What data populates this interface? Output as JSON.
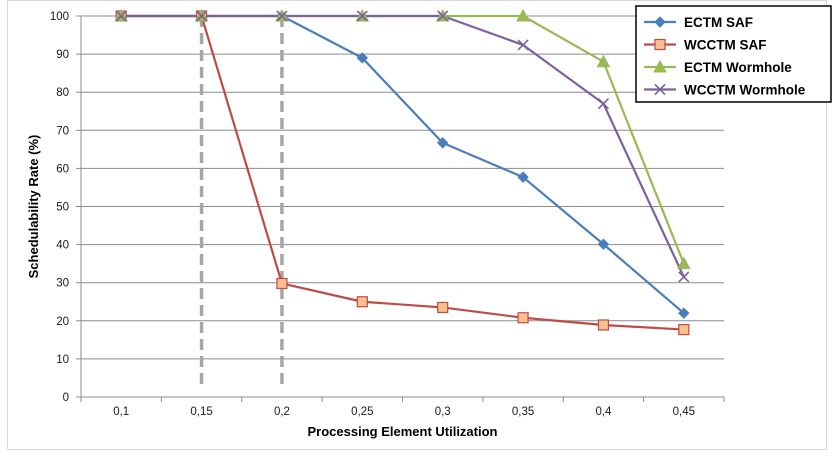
{
  "chart_data": {
    "type": "line",
    "title": "",
    "xlabel": "Processing Element Utilization",
    "ylabel": "Schedulability Rate (%)",
    "categories": [
      "0,1",
      "0,15",
      "0,2",
      "0,25",
      "0,3",
      "0,35",
      "0,4",
      "0,45"
    ],
    "ylim": [
      0,
      100
    ],
    "yticks": [
      0,
      10,
      20,
      30,
      40,
      50,
      60,
      70,
      80,
      90,
      100
    ],
    "grid": true,
    "legend_position": "top-right",
    "series": [
      {
        "name": "ECTM SAF",
        "color": "#4a7ebb",
        "marker": "diamond",
        "values": [
          100,
          100,
          100,
          89,
          66.7,
          57.7,
          40.1,
          22
        ]
      },
      {
        "name": "WCCTM SAF",
        "color": "#be4b48",
        "marker": "square",
        "values": [
          100,
          100,
          29.8,
          25,
          23.5,
          20.8,
          18.9,
          17.7
        ]
      },
      {
        "name": "ECTM Wormhole",
        "color": "#98b954",
        "marker": "triangle",
        "values": [
          100,
          100,
          100,
          100,
          100,
          100,
          88,
          35
        ]
      },
      {
        "name": "WCCTM Wormhole",
        "color": "#7d60a0",
        "marker": "x",
        "values": [
          100,
          100,
          100,
          100,
          100,
          92.4,
          77,
          31.5
        ]
      }
    ],
    "reference_lines": [
      {
        "x_category": "0,15",
        "style": "dashed",
        "color": "#a6a6a6"
      },
      {
        "x_category": "0,2",
        "style": "dashed",
        "color": "#a6a6a6"
      }
    ]
  }
}
